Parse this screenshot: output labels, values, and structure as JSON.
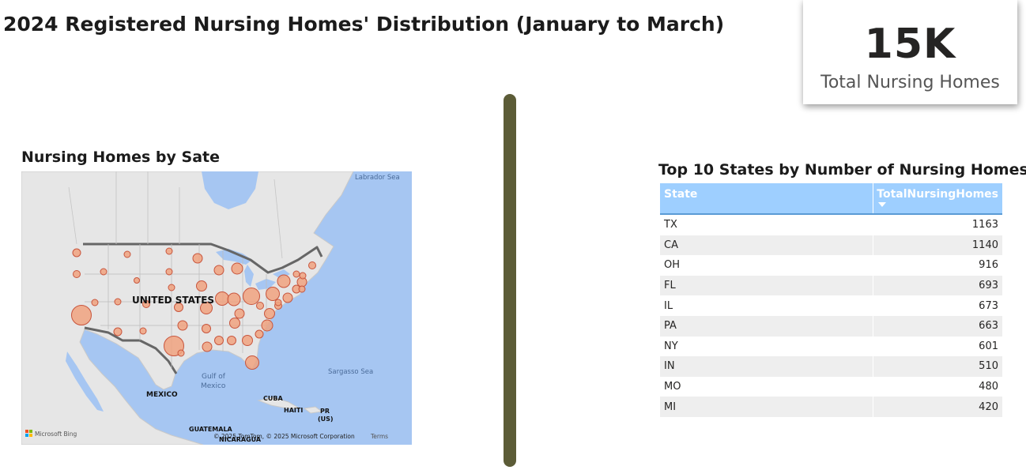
{
  "page": {
    "title": "2024 Registered Nursing Homes' Distribution (January to March)"
  },
  "kpi": {
    "value": "15K",
    "label": "Total Nursing Homes"
  },
  "map": {
    "title": "Nursing Homes by Sate",
    "labels": {
      "country": "UNITED STATES",
      "labrador_sea": "Labrador Sea",
      "gulf": "Gulf of",
      "gulf_line2": "Mexico",
      "sargasso": "Sargasso Sea",
      "mexico": "MEXICO",
      "cuba": "CUBA",
      "haiti": "HAITI",
      "pr": "PR",
      "pr_line2": "(US)",
      "guatemala": "GUATEMALA",
      "nicaragua": "NICARAGUA",
      "bing": "Microsoft Bing",
      "copyright": "© 2025 TomTom, © 2025 Microsoft Corporation",
      "terms": "Terms"
    },
    "colors": {
      "water": "#a6c6f2",
      "land": "#e6e6e6",
      "bubble_fill": "#f0a27f",
      "bubble_stroke": "#c8553d"
    }
  },
  "table": {
    "title": "Top 10 States by Number of Nursing Homes",
    "columns": [
      "State",
      "TotalNursingHomes"
    ],
    "sort_icon": "sort-descending-icon",
    "rows": [
      {
        "state": "TX",
        "total": "1163"
      },
      {
        "state": "CA",
        "total": "1140"
      },
      {
        "state": "OH",
        "total": "916"
      },
      {
        "state": "FL",
        "total": "693"
      },
      {
        "state": "IL",
        "total": "673"
      },
      {
        "state": "PA",
        "total": "663"
      },
      {
        "state": "NY",
        "total": "601"
      },
      {
        "state": "IN",
        "total": "510"
      },
      {
        "state": "MO",
        "total": "480"
      },
      {
        "state": "MI",
        "total": "420"
      }
    ]
  },
  "colors": {
    "divider": "#5c5c37",
    "header_bg": "#9ecfff",
    "row_alt": "#eeeeee"
  }
}
